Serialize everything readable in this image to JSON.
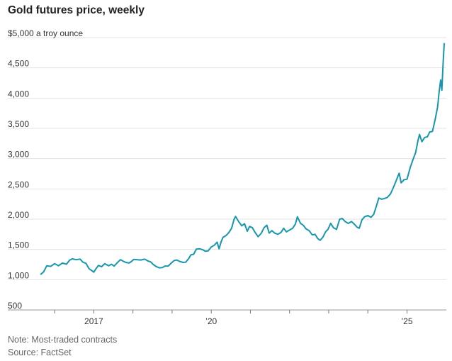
{
  "chart_data": {
    "type": "line",
    "title": "Gold futures price, weekly",
    "ylabel": "$5,000 a troy ounce",
    "xlabel": "",
    "ylim": [
      500,
      5000
    ],
    "xlim": [
      2015.6,
      2025.95
    ],
    "yticks": [
      {
        "value": 5000,
        "label": "$5,000 a troy ounce",
        "unit": true
      },
      {
        "value": 4500,
        "label": "4,500"
      },
      {
        "value": 4000,
        "label": "4,000"
      },
      {
        "value": 3500,
        "label": "3,500"
      },
      {
        "value": 3000,
        "label": "3,000"
      },
      {
        "value": 2500,
        "label": "2,500"
      },
      {
        "value": 2000,
        "label": "2,000"
      },
      {
        "value": 1500,
        "label": "1,500"
      },
      {
        "value": 1000,
        "label": "1,000"
      },
      {
        "value": 500,
        "label": "500"
      }
    ],
    "xticks": [
      2016,
      2017,
      2018,
      2019,
      2020,
      2021,
      2022,
      2023,
      2024,
      2025
    ],
    "xtick_labels": [
      {
        "value": 2017,
        "label": "2017"
      },
      {
        "value": 2020,
        "label": "’20"
      },
      {
        "value": 2025,
        "label": "’25"
      }
    ],
    "series": [
      {
        "name": "Gold futures price",
        "color": "#1797ad",
        "points": [
          [
            2015.65,
            1090
          ],
          [
            2015.72,
            1130
          ],
          [
            2015.8,
            1230
          ],
          [
            2015.9,
            1220
          ],
          [
            2016.0,
            1265
          ],
          [
            2016.1,
            1230
          ],
          [
            2016.2,
            1275
          ],
          [
            2016.3,
            1255
          ],
          [
            2016.38,
            1320
          ],
          [
            2016.45,
            1345
          ],
          [
            2016.55,
            1330
          ],
          [
            2016.65,
            1340
          ],
          [
            2016.72,
            1290
          ],
          [
            2016.8,
            1270
          ],
          [
            2016.88,
            1180
          ],
          [
            2016.95,
            1150
          ],
          [
            2017.0,
            1125
          ],
          [
            2017.05,
            1175
          ],
          [
            2017.12,
            1235
          ],
          [
            2017.2,
            1215
          ],
          [
            2017.28,
            1265
          ],
          [
            2017.38,
            1230
          ],
          [
            2017.45,
            1255
          ],
          [
            2017.52,
            1225
          ],
          [
            2017.6,
            1280
          ],
          [
            2017.68,
            1330
          ],
          [
            2017.75,
            1305
          ],
          [
            2017.82,
            1285
          ],
          [
            2017.9,
            1275
          ],
          [
            2017.96,
            1300
          ],
          [
            2018.02,
            1335
          ],
          [
            2018.1,
            1330
          ],
          [
            2018.2,
            1325
          ],
          [
            2018.3,
            1340
          ],
          [
            2018.38,
            1310
          ],
          [
            2018.45,
            1295
          ],
          [
            2018.52,
            1250
          ],
          [
            2018.6,
            1215
          ],
          [
            2018.68,
            1195
          ],
          [
            2018.75,
            1200
          ],
          [
            2018.82,
            1225
          ],
          [
            2018.9,
            1225
          ],
          [
            2018.98,
            1275
          ],
          [
            2019.05,
            1315
          ],
          [
            2019.12,
            1325
          ],
          [
            2019.2,
            1300
          ],
          [
            2019.28,
            1285
          ],
          [
            2019.35,
            1290
          ],
          [
            2019.42,
            1345
          ],
          [
            2019.48,
            1410
          ],
          [
            2019.55,
            1420
          ],
          [
            2019.62,
            1505
          ],
          [
            2019.7,
            1510
          ],
          [
            2019.78,
            1495
          ],
          [
            2019.85,
            1470
          ],
          [
            2019.92,
            1475
          ],
          [
            2020.0,
            1540
          ],
          [
            2020.08,
            1570
          ],
          [
            2020.15,
            1620
          ],
          [
            2020.2,
            1510
          ],
          [
            2020.25,
            1620
          ],
          [
            2020.3,
            1700
          ],
          [
            2020.38,
            1730
          ],
          [
            2020.45,
            1780
          ],
          [
            2020.52,
            1850
          ],
          [
            2020.58,
            1990
          ],
          [
            2020.62,
            2045
          ],
          [
            2020.7,
            1960
          ],
          [
            2020.78,
            1890
          ],
          [
            2020.85,
            1925
          ],
          [
            2020.92,
            1800
          ],
          [
            2020.98,
            1880
          ],
          [
            2021.05,
            1860
          ],
          [
            2021.12,
            1780
          ],
          [
            2021.2,
            1710
          ],
          [
            2021.28,
            1770
          ],
          [
            2021.35,
            1860
          ],
          [
            2021.42,
            1900
          ],
          [
            2021.48,
            1770
          ],
          [
            2021.55,
            1810
          ],
          [
            2021.62,
            1770
          ],
          [
            2021.7,
            1750
          ],
          [
            2021.78,
            1780
          ],
          [
            2021.85,
            1850
          ],
          [
            2021.92,
            1790
          ],
          [
            2022.0,
            1820
          ],
          [
            2022.08,
            1850
          ],
          [
            2022.15,
            1920
          ],
          [
            2022.2,
            2040
          ],
          [
            2022.28,
            1930
          ],
          [
            2022.35,
            1900
          ],
          [
            2022.42,
            1840
          ],
          [
            2022.5,
            1810
          ],
          [
            2022.58,
            1740
          ],
          [
            2022.65,
            1750
          ],
          [
            2022.72,
            1680
          ],
          [
            2022.78,
            1650
          ],
          [
            2022.85,
            1700
          ],
          [
            2022.92,
            1790
          ],
          [
            2022.98,
            1830
          ],
          [
            2023.05,
            1930
          ],
          [
            2023.12,
            1860
          ],
          [
            2023.2,
            1830
          ],
          [
            2023.28,
            2000
          ],
          [
            2023.35,
            2010
          ],
          [
            2023.42,
            1960
          ],
          [
            2023.5,
            1930
          ],
          [
            2023.58,
            1960
          ],
          [
            2023.65,
            1920
          ],
          [
            2023.72,
            1870
          ],
          [
            2023.78,
            1850
          ],
          [
            2023.85,
            1990
          ],
          [
            2023.92,
            2040
          ],
          [
            2024.0,
            2060
          ],
          [
            2024.08,
            2030
          ],
          [
            2024.15,
            2080
          ],
          [
            2024.2,
            2180
          ],
          [
            2024.28,
            2350
          ],
          [
            2024.35,
            2330
          ],
          [
            2024.42,
            2340
          ],
          [
            2024.5,
            2360
          ],
          [
            2024.58,
            2420
          ],
          [
            2024.65,
            2520
          ],
          [
            2024.72,
            2630
          ],
          [
            2024.8,
            2760
          ],
          [
            2024.85,
            2600
          ],
          [
            2024.92,
            2650
          ],
          [
            2025.0,
            2660
          ],
          [
            2025.08,
            2850
          ],
          [
            2025.15,
            2980
          ],
          [
            2025.22,
            3100
          ],
          [
            2025.28,
            3300
          ],
          [
            2025.32,
            3400
          ],
          [
            2025.38,
            3280
          ],
          [
            2025.45,
            3350
          ],
          [
            2025.52,
            3360
          ],
          [
            2025.58,
            3440
          ],
          [
            2025.65,
            3450
          ],
          [
            2025.72,
            3650
          ],
          [
            2025.78,
            3850
          ],
          [
            2025.82,
            4100
          ],
          [
            2025.86,
            4300
          ],
          [
            2025.89,
            4130
          ],
          [
            2025.92,
            4550
          ],
          [
            2025.95,
            4900
          ]
        ]
      }
    ]
  },
  "footnotes": {
    "note": "Note: Most-traded contracts",
    "source": "Source: FactSet"
  }
}
